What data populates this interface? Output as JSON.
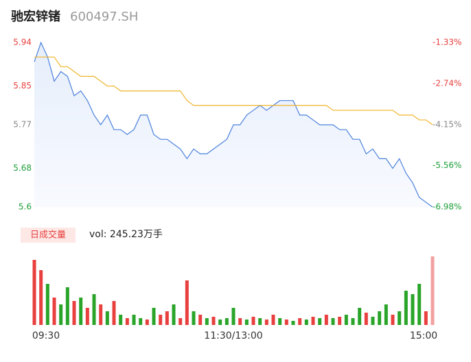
{
  "header": {
    "name": "驰宏锌锗",
    "code": "600497.SH"
  },
  "chart_data": [
    {
      "type": "line",
      "ylim": [
        5.6,
        5.94
      ],
      "yticks": [
        5.94,
        5.85,
        5.77,
        5.68,
        5.6
      ],
      "ytick_colors": [
        "#e8403f",
        "#e8403f",
        "#888888",
        "#1e9e3a",
        "#1e9e3a"
      ],
      "y2lim": [
        -6.98,
        -1.33
      ],
      "y2ticks": [
        {
          "value": -1.33,
          "label": "-1.33%"
        },
        {
          "value": -2.74,
          "label": "-2.74%"
        },
        {
          "value": -4.15,
          "label": "-4.15%"
        },
        {
          "value": -5.56,
          "label": "-5.56%"
        },
        {
          "value": -6.98,
          "label": "-6.98%"
        }
      ],
      "xlim": [
        0,
        60
      ],
      "series": [
        {
          "name": "price",
          "color": "#4a80dc",
          "values": [
            5.9,
            5.94,
            5.91,
            5.86,
            5.88,
            5.87,
            5.83,
            5.84,
            5.82,
            5.79,
            5.77,
            5.79,
            5.76,
            5.76,
            5.75,
            5.76,
            5.79,
            5.79,
            5.75,
            5.74,
            5.74,
            5.73,
            5.72,
            5.7,
            5.72,
            5.71,
            5.71,
            5.72,
            5.73,
            5.74,
            5.77,
            5.77,
            5.79,
            5.8,
            5.81,
            5.8,
            5.81,
            5.82,
            5.82,
            5.82,
            5.79,
            5.79,
            5.78,
            5.77,
            5.77,
            5.77,
            5.76,
            5.76,
            5.74,
            5.74,
            5.71,
            5.72,
            5.7,
            5.7,
            5.68,
            5.7,
            5.67,
            5.65,
            5.62,
            5.61,
            5.6
          ]
        },
        {
          "name": "average",
          "color": "#f0b429",
          "values": [
            5.91,
            5.91,
            5.91,
            5.91,
            5.89,
            5.89,
            5.88,
            5.87,
            5.87,
            5.87,
            5.86,
            5.85,
            5.85,
            5.84,
            5.84,
            5.84,
            5.84,
            5.84,
            5.84,
            5.84,
            5.84,
            5.84,
            5.84,
            5.82,
            5.81,
            5.81,
            5.81,
            5.81,
            5.81,
            5.81,
            5.81,
            5.81,
            5.81,
            5.81,
            5.81,
            5.81,
            5.81,
            5.81,
            5.81,
            5.81,
            5.81,
            5.81,
            5.81,
            5.81,
            5.81,
            5.8,
            5.8,
            5.8,
            5.8,
            5.8,
            5.8,
            5.8,
            5.8,
            5.8,
            5.8,
            5.79,
            5.79,
            5.79,
            5.78,
            5.78,
            5.77
          ]
        }
      ]
    },
    {
      "type": "bar",
      "button": "日成交量",
      "label": "vol: 245.23万手",
      "ylim": [
        0,
        5
      ],
      "xlim": [
        0,
        60
      ],
      "xticks": [
        {
          "value": 0,
          "label": "09:30"
        },
        {
          "value": 30,
          "label": "11:30/13:00"
        },
        {
          "value": 60,
          "label": "15:00"
        }
      ],
      "values": [
        4.75,
        4.0,
        3.0,
        2.0,
        1.5,
        2.75,
        1.75,
        2.0,
        1.25,
        2.25,
        1.5,
        1.0,
        1.75,
        0.75,
        0.5,
        0.75,
        0.5,
        0.4,
        1.25,
        0.75,
        1.0,
        1.5,
        0.5,
        3.25,
        1.0,
        0.75,
        0.5,
        0.6,
        0.4,
        0.5,
        1.25,
        0.5,
        0.4,
        0.6,
        0.5,
        0.4,
        0.75,
        0.5,
        0.4,
        0.3,
        0.5,
        0.4,
        0.6,
        0.5,
        0.75,
        0.5,
        0.6,
        0.75,
        0.5,
        1.25,
        0.9,
        0.6,
        1.0,
        1.5,
        0.75,
        1.0,
        2.5,
        2.25,
        3.0,
        1.0,
        5.0
      ],
      "colors": [
        "#e8403f",
        "#e8403f",
        "#2aa52a",
        "#e8403f",
        "#2aa52a",
        "#2aa52a",
        "#e8403f",
        "#2aa52a",
        "#e8403f",
        "#2aa52a",
        "#e8403f",
        "#2aa52a",
        "#e8403f",
        "#2aa52a",
        "#e8403f",
        "#2aa52a",
        "#2aa52a",
        "#e8403f",
        "#2aa52a",
        "#e8403f",
        "#e8403f",
        "#2aa52a",
        "#e8403f",
        "#e8403f",
        "#2aa52a",
        "#e8403f",
        "#2aa52a",
        "#e8403f",
        "#2aa52a",
        "#2aa52a",
        "#2aa52a",
        "#e8403f",
        "#2aa52a",
        "#e8403f",
        "#2aa52a",
        "#e8403f",
        "#e8403f",
        "#2aa52a",
        "#e8403f",
        "#2aa52a",
        "#e8403f",
        "#2aa52a",
        "#e8403f",
        "#2aa52a",
        "#e8403f",
        "#2aa52a",
        "#e8403f",
        "#2aa52a",
        "#2aa52a",
        "#2aa52a",
        "#e8403f",
        "#2aa52a",
        "#2aa52a",
        "#2aa52a",
        "#e8403f",
        "#2aa52a",
        "#2aa52a",
        "#2aa52a",
        "#2aa52a",
        "#e8403f",
        "#f2a0a0"
      ]
    }
  ]
}
